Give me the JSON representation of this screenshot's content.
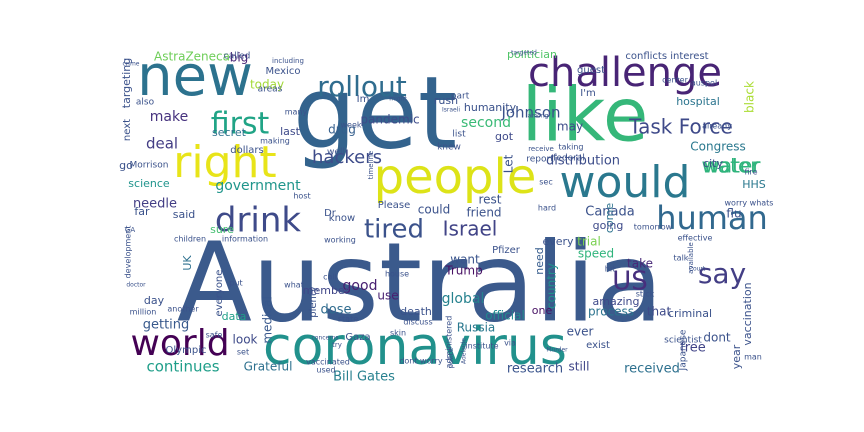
{
  "word_cloud": {
    "words": [
      {
        "text": "Australia",
        "color": "#3b5a8c"
      },
      {
        "text": "get",
        "color": "#33638d"
      },
      {
        "text": "coronavirus",
        "color": "#21918c"
      },
      {
        "text": "like",
        "color": "#35b779"
      },
      {
        "text": "new",
        "color": "#2c728e"
      },
      {
        "text": "people",
        "color": "#dde318"
      },
      {
        "text": "would",
        "color": "#2a788e"
      },
      {
        "text": "right",
        "color": "#e8e419"
      },
      {
        "text": "challenge",
        "color": "#482475"
      },
      {
        "text": "world",
        "color": "#440154"
      },
      {
        "text": "drink",
        "color": "#3e4a89"
      },
      {
        "text": "human",
        "color": "#31688e"
      },
      {
        "text": "first",
        "color": "#20a486"
      },
      {
        "text": "tired",
        "color": "#3b528b"
      },
      {
        "text": "say",
        "color": "#433e85"
      },
      {
        "text": "US",
        "color": "#472f7d"
      },
      {
        "text": "Task Force",
        "color": "#3e4989"
      },
      {
        "text": "rollout",
        "color": "#2f6c8e"
      },
      {
        "text": "water",
        "color": "#2fb47c"
      },
      {
        "text": "hackers",
        "color": "#3e4c8a"
      },
      {
        "text": "Israel",
        "color": "#414487"
      },
      {
        "text": "Johnson",
        "color": "#3b528b"
      },
      {
        "text": "continues",
        "color": "#1f9e89"
      },
      {
        "text": "Bill Gates",
        "color": "#27808e"
      },
      {
        "text": "government",
        "color": "#1f958b"
      },
      {
        "text": "distribution",
        "color": "#3d4d8a"
      },
      {
        "text": "received",
        "color": "#2d708e"
      },
      {
        "text": "research",
        "color": "#3a548c"
      },
      {
        "text": "global",
        "color": "#26828e"
      },
      {
        "text": "Trump",
        "color": "#471063"
      },
      {
        "text": "Canada",
        "color": "#3b528b"
      },
      {
        "text": "good",
        "color": "#482071"
      },
      {
        "text": "make",
        "color": "#46327e"
      },
      {
        "text": "deal",
        "color": "#433d84"
      },
      {
        "text": "pandemic",
        "color": "#3e4c8a"
      },
      {
        "text": "second",
        "color": "#3aba76"
      },
      {
        "text": "water",
        "color": "#2fb47c"
      },
      {
        "text": "dose",
        "color": "#2f6b8e"
      },
      {
        "text": "getting",
        "color": "#38598c"
      },
      {
        "text": "free",
        "color": "#414487"
      },
      {
        "text": "dont",
        "color": "#3b528b"
      },
      {
        "text": "official",
        "color": "#23898e"
      },
      {
        "text": "Congress",
        "color": "#2a788e"
      },
      {
        "text": "Grateful",
        "color": "#2d708e"
      },
      {
        "text": "AstraZeneca",
        "color": "#6ece58"
      },
      {
        "text": "today",
        "color": "#a2da37"
      },
      {
        "text": "drug",
        "color": "#355f8d"
      },
      {
        "text": "needle",
        "color": "#433e85"
      },
      {
        "text": "friend",
        "color": "#3b528b"
      },
      {
        "text": "trial",
        "color": "#7ad151"
      },
      {
        "text": "speed",
        "color": "#2fb47c"
      },
      {
        "text": "Russia",
        "color": "#2a788e"
      },
      {
        "text": "medical",
        "color": "#38588c"
      },
      {
        "text": "UK",
        "color": "#2d708e"
      },
      {
        "text": "science",
        "color": "#1f948c"
      },
      {
        "text": "process",
        "color": "#2c738e"
      },
      {
        "text": "member",
        "color": "#404688"
      },
      {
        "text": "amazing",
        "color": "#3e4989"
      },
      {
        "text": "secret",
        "color": "#2d708e"
      },
      {
        "text": "big",
        "color": "#482576"
      },
      {
        "text": "hospital",
        "color": "#2b748e"
      },
      {
        "text": "flu",
        "color": "#3b528b"
      },
      {
        "text": "city",
        "color": "#3e4a89"
      },
      {
        "text": "HHS",
        "color": "#2a788e"
      },
      {
        "text": "vaccination",
        "color": "#3b528b"
      },
      {
        "text": "take",
        "color": "#482878"
      },
      {
        "text": "come",
        "color": "#2c728e"
      },
      {
        "text": "country",
        "color": "#21918c"
      },
      {
        "text": "want",
        "color": "#3a548c"
      },
      {
        "text": "going",
        "color": "#3e4a89"
      },
      {
        "text": "could",
        "color": "#3b528b"
      },
      {
        "text": "got",
        "color": "#3e4989"
      },
      {
        "text": "may",
        "color": "#3e4c8a"
      },
      {
        "text": "Let",
        "color": "#3b528b"
      },
      {
        "text": "rest",
        "color": "#3b528b"
      },
      {
        "text": "use",
        "color": "#482071"
      },
      {
        "text": "every",
        "color": "#3b528b"
      },
      {
        "text": "need",
        "color": "#365c8d"
      },
      {
        "text": "one",
        "color": "#471164"
      },
      {
        "text": "still",
        "color": "#404688"
      },
      {
        "text": "ever",
        "color": "#3b528b"
      },
      {
        "text": "criminal",
        "color": "#3b528b"
      },
      {
        "text": "that",
        "color": "#3e4a89"
      },
      {
        "text": "year",
        "color": "#3b528b"
      },
      {
        "text": "death",
        "color": "#3b528b"
      },
      {
        "text": "data",
        "color": "#1f9f88"
      },
      {
        "text": "day",
        "color": "#3b528b"
      },
      {
        "text": "look",
        "color": "#3e4a89"
      },
      {
        "text": "far",
        "color": "#3b528b"
      },
      {
        "text": "said",
        "color": "#3b528b"
      },
      {
        "text": "sure",
        "color": "#44bf70"
      },
      {
        "text": "go",
        "color": "#3b528b"
      },
      {
        "text": "Im",
        "color": "#3b528b"
      },
      {
        "text": "I'm",
        "color": "#3b528b"
      },
      {
        "text": "last",
        "color": "#3e4a89"
      },
      {
        "text": "humanity",
        "color": "#3b528b"
      },
      {
        "text": "targeting",
        "color": "#3b528b"
      },
      {
        "text": "everyone",
        "color": "#3b528b"
      },
      {
        "text": "Dr",
        "color": "#3b528b"
      },
      {
        "text": "Please",
        "color": "#3b528b"
      },
      {
        "text": "know",
        "color": "#3b528b"
      },
      {
        "text": "plenty",
        "color": "#3b528b"
      },
      {
        "text": "Mexico",
        "color": "#3b528b"
      },
      {
        "text": "rush",
        "color": "#3b528b"
      },
      {
        "text": "politician",
        "color": "#52c569"
      },
      {
        "text": "conflicts interest",
        "color": "#3b528b"
      },
      {
        "text": "black",
        "color": "#aadc32"
      },
      {
        "text": "guest",
        "color": "#3b528b"
      },
      {
        "text": "part",
        "color": "#3b528b"
      },
      {
        "text": "list",
        "color": "#3b528b"
      },
      {
        "text": "knew",
        "color": "#3b528b"
      },
      {
        "text": "report",
        "color": "#3b528b"
      },
      {
        "text": "federal",
        "color": "#3b528b"
      },
      {
        "text": "exist",
        "color": "#3b528b"
      },
      {
        "text": "scientist",
        "color": "#3b528b"
      },
      {
        "text": "Japanese",
        "color": "#3b528b"
      },
      {
        "text": "Pfizer",
        "color": "#3b528b"
      },
      {
        "text": "Gaza",
        "color": "#3b528b"
      },
      {
        "text": "Olympic",
        "color": "#3b528b"
      },
      {
        "text": "dollars",
        "color": "#3b528b"
      },
      {
        "text": "next",
        "color": "#3b528b"
      },
      {
        "text": "Morrison",
        "color": "#3b528b"
      },
      {
        "text": "also",
        "color": "#3b528b"
      },
      {
        "text": "well",
        "color": "#3b528b"
      },
      {
        "text": "week",
        "color": "#3b528b"
      },
      {
        "text": "many",
        "color": "#3b528b"
      },
      {
        "text": "areas",
        "color": "#3b528b"
      },
      {
        "text": "called",
        "color": "#3b528b"
      },
      {
        "text": "making",
        "color": "#3b528b"
      },
      {
        "text": "host",
        "color": "#3b528b"
      },
      {
        "text": "children",
        "color": "#3b528b"
      },
      {
        "text": "information",
        "color": "#3b528b"
      },
      {
        "text": "working",
        "color": "#3b528b"
      },
      {
        "text": "put",
        "color": "#3b528b"
      },
      {
        "text": "what",
        "color": "#3b528b"
      },
      {
        "text": "call",
        "color": "#3b528b"
      },
      {
        "text": "state",
        "color": "#3b528b"
      },
      {
        "text": "house",
        "color": "#3b528b"
      },
      {
        "text": "discuss",
        "color": "#3b528b"
      },
      {
        "text": "via",
        "color": "#3b528b"
      },
      {
        "text": "institute",
        "color": "#3b528b"
      },
      {
        "text": "skin",
        "color": "#3b528b"
      },
      {
        "text": "administered",
        "color": "#3b528b"
      },
      {
        "text": "safe",
        "color": "#3b528b"
      },
      {
        "text": "million",
        "color": "#3b528b"
      },
      {
        "text": "another",
        "color": "#3b528b"
      },
      {
        "text": "vaccinated",
        "color": "#3b528b"
      },
      {
        "text": "dont worry",
        "color": "#3b528b"
      },
      {
        "text": "used",
        "color": "#3b528b"
      },
      {
        "text": "worry whats",
        "color": "#3b528b"
      },
      {
        "text": "tomorrow",
        "color": "#3b528b"
      },
      {
        "text": "effective",
        "color": "#3b528b"
      },
      {
        "text": "talk",
        "color": "#3b528b"
      },
      {
        "text": "available",
        "color": "#3b528b"
      },
      {
        "text": "hit",
        "color": "#3b528b"
      },
      {
        "text": "stick",
        "color": "#3b528b"
      },
      {
        "text": "man",
        "color": "#3b528b"
      },
      {
        "text": "fire",
        "color": "#3b528b"
      },
      {
        "text": "already",
        "color": "#3b528b"
      },
      {
        "text": "center",
        "color": "#3b528b"
      },
      {
        "text": "auspol",
        "color": "#3b528b"
      },
      {
        "text": "taking",
        "color": "#3b528b"
      },
      {
        "text": "receive",
        "color": "#3b528b"
      },
      {
        "text": "sec",
        "color": "#3b528b"
      },
      {
        "text": "hard",
        "color": "#3b528b"
      },
      {
        "text": "set",
        "color": "#3b528b"
      },
      {
        "text": "police",
        "color": "#3b528b"
      },
      {
        "text": "development",
        "color": "#3b528b"
      },
      {
        "text": "GA",
        "color": "#3b528b"
      },
      {
        "text": "timeline",
        "color": "#3b528b"
      },
      {
        "text": "including",
        "color": "#3b528b"
      },
      {
        "text": "targeted",
        "color": "#3b528b"
      },
      {
        "text": "crime",
        "color": "#3b528b"
      },
      {
        "text": "among",
        "color": "#3b528b"
      },
      {
        "text": "Israeli",
        "color": "#3b528b"
      },
      {
        "text": "might",
        "color": "#3b528b"
      },
      {
        "text": "doctor",
        "color": "#3b528b"
      },
      {
        "text": "concerns",
        "color": "#3b528b"
      },
      {
        "text": "try",
        "color": "#3b528b"
      },
      {
        "text": "Court",
        "color": "#3b528b"
      },
      {
        "text": "Murder",
        "color": "#3b528b"
      },
      {
        "text": "Adelaide",
        "color": "#3b528b"
      }
    ]
  }
}
